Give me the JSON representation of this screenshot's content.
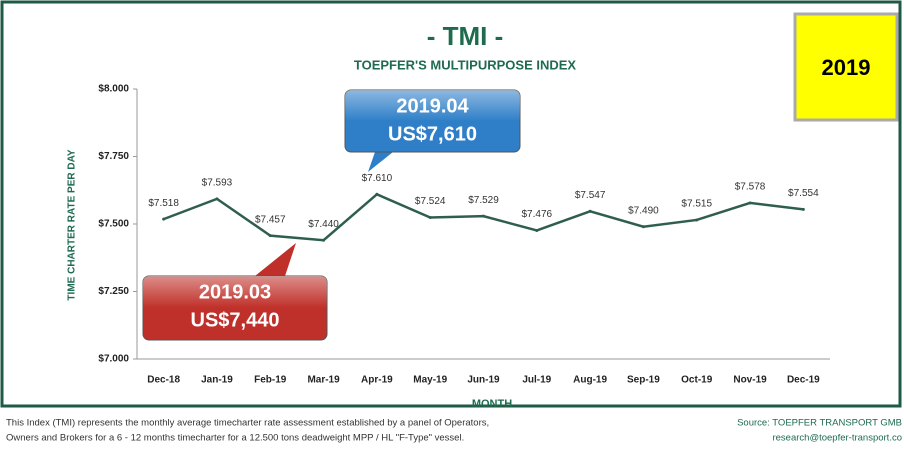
{
  "chart_data": {
    "type": "line",
    "title": "- TMI -",
    "subtitle": "TOEPFER'S MULTIPURPOSE INDEX",
    "badge": "2019",
    "y_label": "TIME CHARTER RATE PER DAY",
    "x_label": "MONTH",
    "categories": [
      "Dec-18",
      "Jan-19",
      "Feb-19",
      "Mar-19",
      "Apr-19",
      "May-19",
      "Jun-19",
      "Jul-19",
      "Aug-19",
      "Sep-19",
      "Oct-19",
      "Nov-19",
      "Dec-19"
    ],
    "values": [
      7518,
      7593,
      7457,
      7440,
      7610,
      7524,
      7529,
      7476,
      7547,
      7490,
      7515,
      7578,
      7554
    ],
    "value_labels": [
      "$7.518",
      "$7.593",
      "$7.457",
      "$7.440",
      "$7.610",
      "$7.524",
      "$7.529",
      "$7.476",
      "$7.547",
      "$7.490",
      "$7.515",
      "$7.578",
      "$7.554"
    ],
    "color": "#2f5f4c",
    "ylim": [
      7000,
      8000
    ],
    "yticks": [
      {
        "value": 7000,
        "label": "$7.000"
      },
      {
        "value": 7250,
        "label": "$7.250"
      },
      {
        "value": 7500,
        "label": "$7.500"
      },
      {
        "value": 7750,
        "label": "$7.750"
      },
      {
        "value": 8000,
        "label": "$8.000"
      }
    ],
    "annotations": [
      {
        "lines": [
          "2019.04",
          "US$7,610"
        ],
        "color": "#2f7fc8"
      },
      {
        "lines": [
          "2019.03",
          "US$7,440"
        ],
        "color": "#c0302a"
      }
    ],
    "footnote": [
      "This Index (TMI) represents the monthly average timecharter rate assessment established by a panel of Operators,",
      "Owners and Brokers for a 6 - 12 months timecharter for a 12.500 tons deadweight MPP / HL \"F-Type\" vessel."
    ],
    "source": [
      "Source: TOEPFER TRANSPORT GMB",
      "research@toepfer-transport.co"
    ]
  }
}
